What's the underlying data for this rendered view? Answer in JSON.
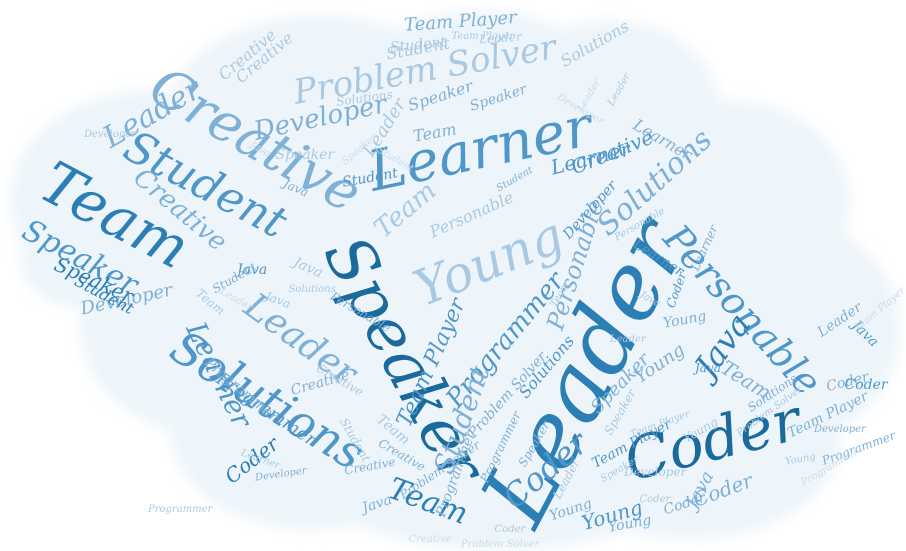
{
  "colors": {
    "background": "#ffffff",
    "cloud_fill": "#eef5fa",
    "palette": [
      "#1b6a9c",
      "#2b7fb4",
      "#4f97c8",
      "#7fb0d6",
      "#a9c9e3",
      "#c8dcec"
    ]
  },
  "words": [
    {
      "text": "Leader",
      "color": "#2b7fb4"
    },
    {
      "text": "Speaker",
      "color": "#1b6a9c"
    },
    {
      "text": "Learner",
      "color": "#4f97c8"
    },
    {
      "text": "Creative",
      "color": "#7fb0d6"
    },
    {
      "text": "Coder",
      "color": "#1b6a9c"
    },
    {
      "text": "Young",
      "color": "#a9c9e3"
    },
    {
      "text": "Solutions",
      "color": "#4f97c8"
    },
    {
      "text": "Team",
      "color": "#2b7fb4"
    },
    {
      "text": "Student",
      "color": "#4f97c8"
    },
    {
      "text": "Problem Solver",
      "color": "#a9c9e3"
    },
    {
      "text": "Personable",
      "color": "#4f97c8"
    },
    {
      "text": "Developer",
      "color": "#7fb0d6"
    },
    {
      "text": "Java",
      "color": "#2b7fb4"
    },
    {
      "text": "Leader",
      "color": "#7fb0d6"
    },
    {
      "text": "Solutions",
      "color": "#7fb0d6"
    },
    {
      "text": "Speaker",
      "color": "#4f97c8"
    },
    {
      "text": "Creative",
      "color": "#7fb0d6"
    },
    {
      "text": "Programmer",
      "color": "#4f97c8"
    },
    {
      "text": "Team Player",
      "color": "#4f97c8"
    },
    {
      "text": "Learner",
      "color": "#4f97c8"
    },
    {
      "text": "Coder",
      "color": "#4f97c8"
    },
    {
      "text": "Team",
      "color": "#2b7fb4"
    },
    {
      "text": "Personable",
      "color": "#7fb0d6"
    },
    {
      "text": "Student",
      "color": "#7fb0d6"
    },
    {
      "text": "Team",
      "color": "#a9c9e3"
    },
    {
      "text": "Leader",
      "color": "#7fb0d6"
    },
    {
      "text": "Developer",
      "color": "#7fb0d6"
    },
    {
      "text": "Speaker",
      "color": "#2b7fb4"
    },
    {
      "text": "Student",
      "color": "#2b7fb4"
    },
    {
      "text": "Learner",
      "color": "#4f97c8"
    },
    {
      "text": "Team",
      "color": "#7fb0d6"
    },
    {
      "text": "Creative",
      "color": "#4f97c8"
    },
    {
      "text": "Young",
      "color": "#4f97c8"
    },
    {
      "text": "Young",
      "color": "#7fb0d6"
    },
    {
      "text": "Solutions",
      "color": "#4f97c8"
    },
    {
      "text": "Java",
      "color": "#4f97c8"
    },
    {
      "text": "Coder",
      "color": "#2b7fb4"
    },
    {
      "text": "Learner",
      "color": "#4f97c8"
    },
    {
      "text": "Leader",
      "color": "#7fb0d6"
    },
    {
      "text": "Java",
      "color": "#4f97c8"
    },
    {
      "text": "Young",
      "color": "#7fb0d6"
    },
    {
      "text": "Speaker",
      "color": "#7fb0d6"
    },
    {
      "text": "Programmer",
      "color": "#4f97c8"
    },
    {
      "text": "Team Player",
      "color": "#4f97c8"
    },
    {
      "text": "Java",
      "color": "#7fb0d6"
    },
    {
      "text": "Coder",
      "color": "#7fb0d6"
    },
    {
      "text": "Speaker",
      "color": "#7fb0d6"
    },
    {
      "text": "Team Player",
      "color": "#7fb0d6"
    },
    {
      "text": "Student",
      "color": "#a9c9e3"
    },
    {
      "text": "Team Player",
      "color": "#a9c9e3"
    },
    {
      "text": "Personable",
      "color": "#a9c9e3"
    },
    {
      "text": "Programmer",
      "color": "#7fb0d6"
    },
    {
      "text": "Creative",
      "color": "#a9c9e3"
    },
    {
      "text": "Learner",
      "color": "#7fb0d6"
    },
    {
      "text": "Developer",
      "color": "#4f97c8"
    },
    {
      "text": "Programmer",
      "color": "#7fb0d6"
    },
    {
      "text": "Coder",
      "color": "#7fb0d6"
    },
    {
      "text": "Creative",
      "color": "#7fb0d6"
    },
    {
      "text": "Student",
      "color": "#7fb0d6"
    },
    {
      "text": "Java",
      "color": "#7fb0d6"
    },
    {
      "text": "Developer",
      "color": "#7fb0d6"
    },
    {
      "text": "Leader",
      "color": "#a9c9e3"
    },
    {
      "text": "Team",
      "color": "#7fb0d6"
    },
    {
      "text": "Speaker",
      "color": "#7fb0d6"
    },
    {
      "text": "Solutions",
      "color": "#a9c9e3"
    },
    {
      "text": "Coder",
      "color": "#4f97c8"
    },
    {
      "text": "Creative",
      "color": "#7fb0d6"
    },
    {
      "text": "Problem Solver",
      "color": "#7fb0d6"
    },
    {
      "text": "Student",
      "color": "#4f97c8"
    },
    {
      "text": "Programmer",
      "color": "#7fb0d6"
    },
    {
      "text": "Leader",
      "color": "#a9c9e3"
    },
    {
      "text": "Young",
      "color": "#7fb0d6"
    },
    {
      "text": "Coder",
      "color": "#7fb0d6"
    },
    {
      "text": "Java",
      "color": "#4f97c8"
    },
    {
      "text": "Young",
      "color": "#7fb0d6"
    },
    {
      "text": "Team",
      "color": "#a9c9e3"
    },
    {
      "text": "Student",
      "color": "#a9c9e3"
    },
    {
      "text": "Creative",
      "color": "#a9c9e3"
    },
    {
      "text": "Speaker",
      "color": "#a9c9e3"
    },
    {
      "text": "Java",
      "color": "#a9c9e3"
    },
    {
      "text": "Team Player",
      "color": "#7fb0d6"
    },
    {
      "text": "Solutions",
      "color": "#7fb0d6"
    },
    {
      "text": "Leader",
      "color": "#a9c9e3"
    },
    {
      "text": "Developer",
      "color": "#a9c9e3"
    },
    {
      "text": "Java",
      "color": "#7fb0d6"
    },
    {
      "text": "Problem Solver",
      "color": "#7fb0d6"
    },
    {
      "text": "Speaker",
      "color": "#7fb0d6"
    },
    {
      "text": "Leader",
      "color": "#a9c9e3"
    },
    {
      "text": "Learner",
      "color": "#7fb0d6"
    },
    {
      "text": "Coder",
      "color": "#4f97c8"
    },
    {
      "text": "Speaker",
      "color": "#a9c9e3"
    },
    {
      "text": "Programmer",
      "color": "#7fb0d6"
    },
    {
      "text": "Creative",
      "color": "#7fb0d6"
    },
    {
      "text": "Student",
      "color": "#a9c9e3"
    },
    {
      "text": "Team",
      "color": "#a9c9e3"
    },
    {
      "text": "Java",
      "color": "#a9c9e3"
    },
    {
      "text": "Personable",
      "color": "#7fb0d6"
    },
    {
      "text": "Developer",
      "color": "#7fb0d6"
    },
    {
      "text": "Problem Solver",
      "color": "#a9c9e3"
    },
    {
      "text": "Leader",
      "color": "#a9c9e3"
    },
    {
      "text": "Solutions",
      "color": "#a9c9e3"
    },
    {
      "text": "Coder",
      "color": "#a9c9e3"
    },
    {
      "text": "Team Player",
      "color": "#a9c9e3"
    },
    {
      "text": "Young",
      "color": "#a9c9e3"
    },
    {
      "text": "Programmer",
      "color": "#a9c9e3"
    },
    {
      "text": "Creative",
      "color": "#a9c9e3"
    },
    {
      "text": "Student",
      "color": "#7fb0d6"
    },
    {
      "text": "Java",
      "color": "#a9c9e3"
    },
    {
      "text": "Speaker",
      "color": "#a9c9e3"
    },
    {
      "text": "Learner",
      "color": "#a9c9e3"
    },
    {
      "text": "Developer",
      "color": "#a9c9e3"
    },
    {
      "text": "Team",
      "color": "#a9c9e3"
    },
    {
      "text": "Solutions",
      "color": "#a9c9e3"
    },
    {
      "text": "Leader",
      "color": "#c8dcec"
    },
    {
      "text": "Coder",
      "color": "#a9c9e3"
    },
    {
      "text": "Personable",
      "color": "#a9c9e3"
    },
    {
      "text": "Problem Solver",
      "color": "#c8dcec"
    },
    {
      "text": "Young",
      "color": "#a9c9e3"
    },
    {
      "text": "Team Player",
      "color": "#c8dcec"
    },
    {
      "text": "Creative",
      "color": "#c8dcec"
    },
    {
      "text": "Programmer",
      "color": "#c8dcec"
    },
    {
      "text": "Java",
      "color": "#c8dcec"
    },
    {
      "text": "Student",
      "color": "#c8dcec"
    },
    {
      "text": "Leader",
      "color": "#c8dcec"
    },
    {
      "text": "Speaker",
      "color": "#c8dcec"
    },
    {
      "text": "Developer",
      "color": "#c8dcec"
    },
    {
      "text": "Solutions",
      "color": "#c8dcec"
    }
  ]
}
